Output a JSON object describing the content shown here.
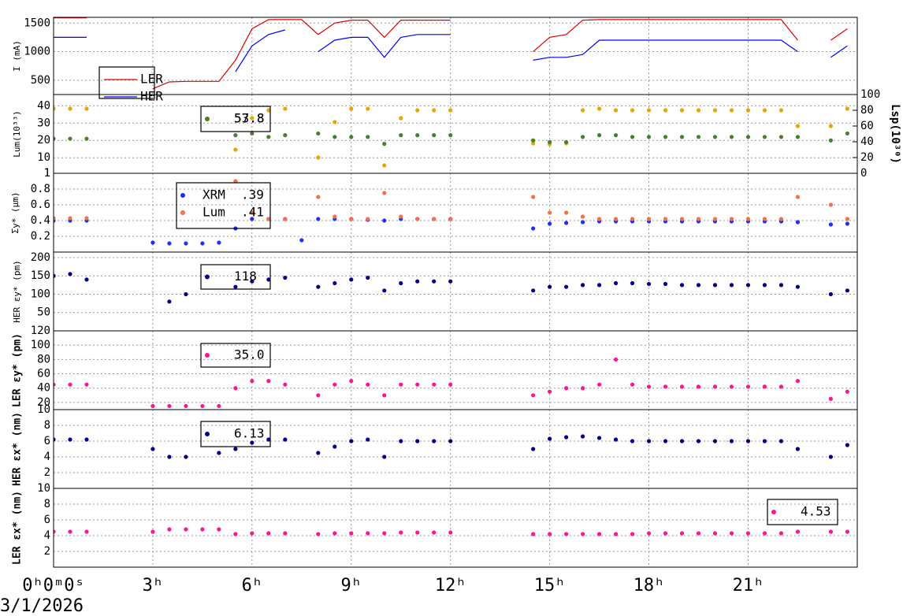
{
  "chart_data": [
    {
      "type": "line",
      "ylabel": "I (mA)",
      "xlim": [
        0,
        24.3
      ],
      "ylim": [
        250,
        1600
      ],
      "yticks": [
        500,
        1000,
        1500
      ],
      "xticks": [
        0,
        3,
        6,
        9,
        12,
        15,
        18,
        21
      ],
      "grid": true,
      "x": [
        0,
        0.5,
        1,
        1.5,
        2,
        2.5,
        3,
        3.5,
        4,
        4.5,
        5,
        5.5,
        6,
        6.5,
        7,
        7.5,
        8,
        8.5,
        9,
        9.5,
        10,
        10.5,
        11,
        11.5,
        12,
        12.5,
        13,
        13.5,
        14,
        14.5,
        15,
        15.5,
        16,
        16.5,
        17,
        17.5,
        18,
        18.5,
        19,
        19.5,
        20,
        20.5,
        21,
        21.5,
        22,
        22.5,
        23,
        23.5,
        24
      ],
      "series": [
        {
          "name": "LER",
          "color": "#e00000",
          "values": [
            1590,
            1590,
            1590,
            null,
            null,
            null,
            350,
            470,
            480,
            480,
            480,
            850,
            1400,
            1560,
            1560,
            1560,
            1300,
            1500,
            1550,
            1550,
            1250,
            1550,
            1550,
            1550,
            1550,
            null,
            null,
            null,
            null,
            1000,
            1250,
            1300,
            1550,
            1560,
            1560,
            1560,
            1560,
            1560,
            1560,
            1560,
            1560,
            1560,
            1560,
            1560,
            1560,
            1200,
            null,
            1200,
            1400
          ]
        },
        {
          "name": "HER",
          "color": "#0000ff",
          "values": [
            1250,
            1250,
            1250,
            null,
            null,
            null,
            null,
            null,
            null,
            null,
            null,
            650,
            1100,
            1300,
            1380,
            null,
            1000,
            1200,
            1250,
            1250,
            900,
            1250,
            1300,
            1300,
            1300,
            null,
            null,
            null,
            null,
            850,
            900,
            900,
            950,
            1200,
            1200,
            1200,
            1200,
            1200,
            1200,
            1200,
            1200,
            1200,
            1200,
            1200,
            1200,
            1000,
            null,
            900,
            1100
          ]
        }
      ]
    },
    {
      "type": "scatter",
      "ylabel": "Lum(10³³)",
      "y2label": "Lsp(10³⁰)",
      "xlim": [
        0,
        24.3
      ],
      "ylim": [
        1,
        46.5
      ],
      "yticks": [
        1,
        10,
        20,
        30,
        40
      ],
      "y2lim": [
        0,
        100
      ],
      "y2ticks": [
        0,
        20,
        40,
        60,
        80,
        100
      ],
      "xticks": [
        0,
        3,
        6,
        9,
        12,
        15,
        18,
        21
      ],
      "grid": true,
      "x": [
        0,
        0.5,
        1,
        1.5,
        2,
        2.5,
        3,
        3.5,
        4,
        4.5,
        5,
        5.5,
        6,
        6.5,
        7,
        7.5,
        8,
        8.5,
        9,
        9.5,
        10,
        10.5,
        11,
        11.5,
        12,
        12.5,
        13,
        13.5,
        14,
        14.5,
        15,
        15.5,
        16,
        16.5,
        17,
        17.5,
        18,
        18.5,
        19,
        19.5,
        20,
        20.5,
        21,
        21.5,
        22,
        22.5,
        23,
        23.5,
        24
      ],
      "series": [
        {
          "name": "53.8",
          "color": "#e6a700",
          "axis": "y2",
          "values": [
            82,
            82,
            82,
            null,
            null,
            null,
            null,
            null,
            null,
            null,
            null,
            30,
            70,
            80,
            82,
            null,
            20,
            65,
            82,
            82,
            10,
            70,
            80,
            80,
            80,
            null,
            null,
            null,
            null,
            38,
            37,
            38,
            80,
            82,
            80,
            80,
            80,
            80,
            80,
            80,
            80,
            80,
            80,
            80,
            80,
            60,
            null,
            60,
            82
          ]
        },
        {
          "name": "57.8",
          "color": "#4a7f30",
          "values": [
            21,
            21,
            21,
            null,
            null,
            null,
            null,
            null,
            null,
            null,
            null,
            23,
            24,
            22,
            23,
            null,
            24,
            22,
            22,
            22,
            18,
            23,
            23,
            23,
            23,
            null,
            null,
            null,
            null,
            20,
            19,
            19,
            22,
            23,
            23,
            22,
            22,
            22,
            22,
            22,
            22,
            22,
            22,
            22,
            22,
            22,
            null,
            20,
            24
          ]
        }
      ]
    },
    {
      "type": "scatter",
      "ylabel": "Σy* (µm)",
      "xlim": [
        0,
        24.3
      ],
      "ylim": [
        0,
        1
      ],
      "yticks": [
        0.2,
        0.4,
        0.6,
        0.8,
        1
      ],
      "xticks": [
        0,
        3,
        6,
        9,
        12,
        15,
        18,
        21
      ],
      "grid": true,
      "x": [
        0,
        0.5,
        1,
        1.5,
        2,
        2.5,
        3,
        3.5,
        4,
        4.5,
        5,
        5.5,
        6,
        6.5,
        7,
        7.5,
        8,
        8.5,
        9,
        9.5,
        10,
        10.5,
        11,
        11.5,
        12,
        12.5,
        13,
        13.5,
        14,
        14.5,
        15,
        15.5,
        16,
        16.5,
        17,
        17.5,
        18,
        18.5,
        19,
        19.5,
        20,
        20.5,
        21,
        21.5,
        22,
        22.5,
        23,
        23.5,
        24
      ],
      "series": [
        {
          "name": "XRM",
          "label": ".39",
          "color": "#1f2fff",
          "values": [
            0.4,
            0.4,
            0.4,
            null,
            null,
            null,
            0.12,
            0.11,
            0.11,
            0.11,
            0.12,
            0.3,
            0.42,
            0.42,
            0.42,
            0.15,
            0.42,
            0.42,
            0.42,
            0.41,
            0.4,
            0.42,
            0.42,
            0.42,
            0.42,
            null,
            null,
            null,
            null,
            0.3,
            0.36,
            0.37,
            0.38,
            0.39,
            0.39,
            0.39,
            0.39,
            0.39,
            0.39,
            0.39,
            0.39,
            0.39,
            0.39,
            0.39,
            0.39,
            0.38,
            null,
            0.35,
            0.36
          ]
        },
        {
          "name": "Lum",
          "label": ".41",
          "color": "#f4704a",
          "values": [
            0.43,
            0.43,
            0.43,
            null,
            null,
            null,
            null,
            null,
            null,
            null,
            null,
            0.9,
            0.5,
            0.42,
            0.42,
            null,
            0.7,
            0.45,
            0.42,
            0.42,
            0.75,
            0.45,
            0.42,
            0.42,
            0.42,
            null,
            null,
            null,
            null,
            0.7,
            0.5,
            0.5,
            0.45,
            0.42,
            0.42,
            0.42,
            0.42,
            0.42,
            0.42,
            0.42,
            0.42,
            0.42,
            0.42,
            0.42,
            0.42,
            0.7,
            null,
            0.6,
            0.42
          ]
        }
      ]
    },
    {
      "type": "scatter",
      "ylabel": "HER εy* (pm)",
      "xlim": [
        0,
        24.3
      ],
      "ylim": [
        0,
        215
      ],
      "yticks": [
        50,
        100,
        150,
        200
      ],
      "xticks": [
        0,
        3,
        6,
        9,
        12,
        15,
        18,
        21
      ],
      "grid": true,
      "x": [
        0,
        0.5,
        1,
        1.5,
        2,
        2.5,
        3,
        3.5,
        4,
        4.5,
        5,
        5.5,
        6,
        6.5,
        7,
        7.5,
        8,
        8.5,
        9,
        9.5,
        10,
        10.5,
        11,
        11.5,
        12,
        12.5,
        13,
        13.5,
        14,
        14.5,
        15,
        15.5,
        16,
        16.5,
        17,
        17.5,
        18,
        18.5,
        19,
        19.5,
        20,
        20.5,
        21,
        21.5,
        22,
        22.5,
        23,
        23.5,
        24
      ],
      "series": [
        {
          "name": "118",
          "color": "#000090",
          "values": [
            150,
            155,
            140,
            null,
            null,
            null,
            null,
            80,
            100,
            null,
            null,
            120,
            135,
            140,
            145,
            null,
            120,
            130,
            140,
            145,
            110,
            130,
            135,
            135,
            135,
            null,
            null,
            null,
            null,
            110,
            120,
            120,
            125,
            125,
            130,
            130,
            128,
            128,
            125,
            125,
            125,
            125,
            125,
            125,
            125,
            120,
            null,
            100,
            110
          ]
        }
      ]
    },
    {
      "type": "scatter",
      "ylabel": "LER εy* (pm)",
      "xlim": [
        0,
        24.3
      ],
      "ylim": [
        10,
        120
      ],
      "yticks": [
        10,
        20,
        40,
        60,
        80,
        100,
        120
      ],
      "xticks": [
        0,
        3,
        6,
        9,
        12,
        15,
        18,
        21
      ],
      "grid": true,
      "x": [
        0,
        0.5,
        1,
        1.5,
        2,
        2.5,
        3,
        3.5,
        4,
        4.5,
        5,
        5.5,
        6,
        6.5,
        7,
        7.5,
        8,
        8.5,
        9,
        9.5,
        10,
        10.5,
        11,
        11.5,
        12,
        12.5,
        13,
        13.5,
        14,
        14.5,
        15,
        15.5,
        16,
        16.5,
        17,
        17.5,
        18,
        18.5,
        19,
        19.5,
        20,
        20.5,
        21,
        21.5,
        22,
        22.5,
        23,
        23.5,
        24
      ],
      "series": [
        {
          "name": "35.0",
          "color": "#ff1493",
          "values": [
            45,
            45,
            45,
            null,
            null,
            null,
            15,
            15,
            15,
            15,
            15,
            40,
            50,
            50,
            45,
            null,
            30,
            45,
            50,
            45,
            30,
            45,
            45,
            45,
            45,
            null,
            null,
            null,
            null,
            30,
            35,
            40,
            40,
            45,
            80,
            45,
            42,
            42,
            42,
            42,
            42,
            42,
            42,
            42,
            42,
            50,
            null,
            25,
            35
          ]
        }
      ]
    },
    {
      "type": "scatter",
      "ylabel": "HER εx* (nm)",
      "xlim": [
        0,
        24.3
      ],
      "ylim": [
        0,
        10
      ],
      "yticks": [
        2,
        4,
        6,
        8
      ],
      "xticks": [
        0,
        3,
        6,
        9,
        12,
        15,
        18,
        21
      ],
      "grid": true,
      "x": [
        0,
        0.5,
        1,
        1.5,
        2,
        2.5,
        3,
        3.5,
        4,
        4.5,
        5,
        5.5,
        6,
        6.5,
        7,
        7.5,
        8,
        8.5,
        9,
        9.5,
        10,
        10.5,
        11,
        11.5,
        12,
        12.5,
        13,
        13.5,
        14,
        14.5,
        15,
        15.5,
        16,
        16.5,
        17,
        17.5,
        18,
        18.5,
        19,
        19.5,
        20,
        20.5,
        21,
        21.5,
        22,
        22.5,
        23,
        23.5,
        24
      ],
      "series": [
        {
          "name": "6.13",
          "color": "#000090",
          "values": [
            6.2,
            6.2,
            6.2,
            null,
            null,
            null,
            5,
            4,
            4,
            null,
            4.5,
            5,
            5.8,
            6.2,
            6.2,
            null,
            4.5,
            5.3,
            6,
            6.2,
            4,
            6,
            6,
            6,
            6,
            null,
            null,
            null,
            null,
            5,
            6.3,
            6.5,
            6.6,
            6.4,
            6.2,
            6,
            6,
            6,
            6,
            6,
            6,
            6,
            6,
            6,
            6,
            5,
            null,
            4,
            5.5
          ]
        }
      ]
    },
    {
      "type": "scatter",
      "ylabel": "LER εx* (nm)",
      "xlabel": "3/1/2026",
      "xlim": [
        0,
        24.3
      ],
      "ylim": [
        0,
        10
      ],
      "yticks": [
        2,
        4,
        6,
        8,
        10
      ],
      "grid": true,
      "xticks": [
        {
          "value": 0,
          "label": "0ʰ0ᵐ0ˢ"
        },
        {
          "value": 3,
          "label": "3ʰ"
        },
        {
          "value": 6,
          "label": "6ʰ"
        },
        {
          "value": 9,
          "label": "9ʰ"
        },
        {
          "value": 12,
          "label": "12ʰ"
        },
        {
          "value": 15,
          "label": "15ʰ"
        },
        {
          "value": 18,
          "label": "18ʰ"
        },
        {
          "value": 21,
          "label": "21ʰ"
        }
      ],
      "x": [
        0,
        0.5,
        1,
        1.5,
        2,
        2.5,
        3,
        3.5,
        4,
        4.5,
        5,
        5.5,
        6,
        6.5,
        7,
        7.5,
        8,
        8.5,
        9,
        9.5,
        10,
        10.5,
        11,
        11.5,
        12,
        12.5,
        13,
        13.5,
        14,
        14.5,
        15,
        15.5,
        16,
        16.5,
        17,
        17.5,
        18,
        18.5,
        19,
        19.5,
        20,
        20.5,
        21,
        21.5,
        22,
        22.5,
        23,
        23.5,
        24
      ],
      "series": [
        {
          "name": "4.53",
          "color": "#ff1493",
          "values": [
            4.5,
            4.5,
            4.5,
            null,
            null,
            null,
            4.5,
            4.8,
            4.8,
            4.8,
            4.8,
            4.2,
            4.3,
            4.3,
            4.3,
            null,
            4.2,
            4.3,
            4.3,
            4.3,
            4.3,
            4.4,
            4.4,
            4.4,
            4.4,
            null,
            null,
            null,
            null,
            4.2,
            4.2,
            4.2,
            4.2,
            4.2,
            4.2,
            4.2,
            4.3,
            4.3,
            4.3,
            4.3,
            4.3,
            4.3,
            4.3,
            4.3,
            4.3,
            4.5,
            null,
            4.5,
            4.5
          ]
        }
      ]
    }
  ]
}
